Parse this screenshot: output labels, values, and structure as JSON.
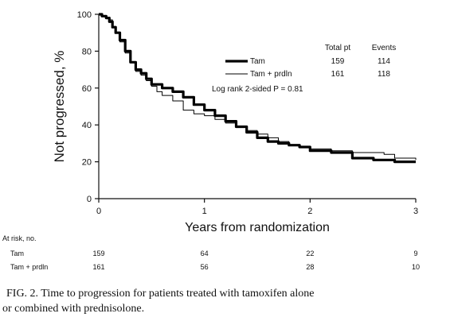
{
  "chart_data": {
    "type": "line",
    "xlabel": "Years from randomization",
    "ylabel": "Not progressed, %",
    "xlim": [
      0,
      3
    ],
    "ylim": [
      0,
      100
    ],
    "xticks": [
      "0",
      "1",
      "2",
      "3"
    ],
    "yticks": [
      "0",
      "20",
      "40",
      "60",
      "80",
      "100"
    ],
    "legend": {
      "header_total": "Total pt",
      "header_events": "Events",
      "rows": [
        {
          "label": "Tam",
          "total": "159",
          "events": "114"
        },
        {
          "label": "Tam + prdln",
          "total": "161",
          "events": "118"
        }
      ]
    },
    "annotation": "Log rank 2-sided P = 0.81",
    "series": [
      {
        "name": "Tam",
        "style": "thick",
        "color": "#000000",
        "points": [
          [
            0,
            100
          ],
          [
            0.03,
            99
          ],
          [
            0.07,
            98
          ],
          [
            0.1,
            96
          ],
          [
            0.13,
            93
          ],
          [
            0.16,
            90
          ],
          [
            0.2,
            86
          ],
          [
            0.25,
            80
          ],
          [
            0.3,
            74
          ],
          [
            0.35,
            70
          ],
          [
            0.4,
            68
          ],
          [
            0.45,
            65
          ],
          [
            0.5,
            62
          ],
          [
            0.6,
            60
          ],
          [
            0.7,
            58
          ],
          [
            0.8,
            55
          ],
          [
            0.9,
            51
          ],
          [
            1.0,
            48
          ],
          [
            1.1,
            45
          ],
          [
            1.2,
            42
          ],
          [
            1.3,
            39
          ],
          [
            1.4,
            36
          ],
          [
            1.5,
            33
          ],
          [
            1.6,
            31
          ],
          [
            1.7,
            30
          ],
          [
            1.8,
            29
          ],
          [
            1.9,
            28
          ],
          [
            2.0,
            26
          ],
          [
            2.2,
            25
          ],
          [
            2.4,
            22
          ],
          [
            2.6,
            21
          ],
          [
            2.8,
            20
          ],
          [
            3.0,
            20
          ]
        ]
      },
      {
        "name": "Tam + prdln",
        "style": "thin",
        "color": "#000000",
        "points": [
          [
            0,
            100
          ],
          [
            0.03,
            99
          ],
          [
            0.07,
            98
          ],
          [
            0.1,
            97
          ],
          [
            0.13,
            93
          ],
          [
            0.16,
            90
          ],
          [
            0.2,
            85
          ],
          [
            0.25,
            79
          ],
          [
            0.3,
            74
          ],
          [
            0.35,
            69
          ],
          [
            0.4,
            67
          ],
          [
            0.45,
            64
          ],
          [
            0.5,
            61
          ],
          [
            0.55,
            58
          ],
          [
            0.6,
            56
          ],
          [
            0.7,
            53
          ],
          [
            0.8,
            48
          ],
          [
            0.9,
            46
          ],
          [
            1.0,
            45
          ],
          [
            1.1,
            43
          ],
          [
            1.2,
            41
          ],
          [
            1.3,
            39
          ],
          [
            1.4,
            37
          ],
          [
            1.5,
            35
          ],
          [
            1.6,
            33
          ],
          [
            1.7,
            31
          ],
          [
            1.8,
            29
          ],
          [
            1.9,
            28
          ],
          [
            2.0,
            27
          ],
          [
            2.2,
            26
          ],
          [
            2.4,
            25
          ],
          [
            2.6,
            25
          ],
          [
            2.7,
            24
          ],
          [
            2.8,
            22
          ],
          [
            3.0,
            21
          ]
        ]
      }
    ],
    "at_risk": {
      "label": "At risk, no.",
      "rows": [
        {
          "label": "Tam",
          "values": [
            "159",
            "64",
            "22",
            "9"
          ]
        },
        {
          "label": "Tam + prdln",
          "values": [
            "161",
            "56",
            "28",
            "10"
          ]
        }
      ]
    },
    "caption_line1": "FIG. 2. Time to progression for patients treated with tamoxifen alone",
    "caption_line2": "or combined with prednisolone."
  }
}
